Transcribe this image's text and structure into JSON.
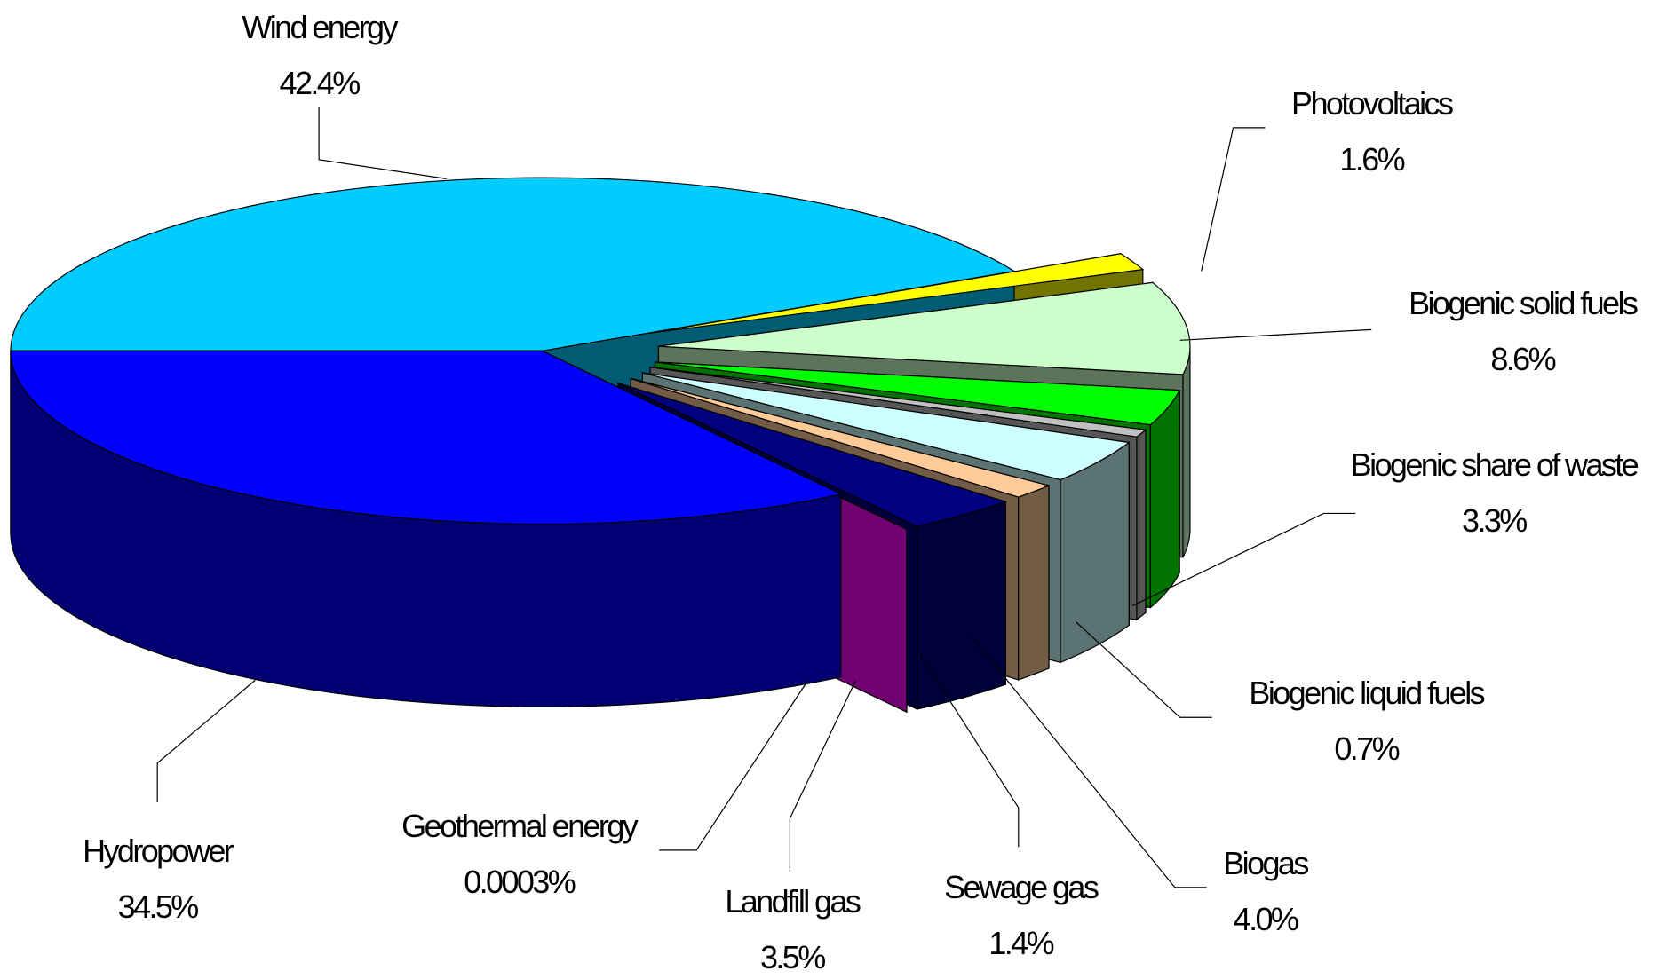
{
  "chart_data": {
    "type": "pie3d",
    "categories": [
      "Wind energy",
      "Photovoltaics",
      "Biogenic solid fuels",
      "Biogenic share of waste",
      "Biogenic liquid fuels",
      "Biogas",
      "Sewage gas",
      "Landfill gas",
      "Geothermal energy",
      "Hydropower"
    ],
    "values": [
      42.4,
      1.6,
      8.6,
      3.3,
      0.7,
      4.0,
      1.4,
      3.5,
      0.0003,
      34.5
    ],
    "value_labels": [
      "42.4%",
      "1.6%",
      "8.6%",
      "3.3%",
      "0.7%",
      "4.0%",
      "1.4%",
      "3.5%",
      "0.0003%",
      "34.5%"
    ],
    "colors": [
      "#00ccff",
      "#ffff00",
      "#ccffcc",
      "#00ff00",
      "#c0c0c0",
      "#ccffff",
      "#ffcc99",
      "#000080",
      "#ff00ff",
      "#0000ff"
    ]
  }
}
